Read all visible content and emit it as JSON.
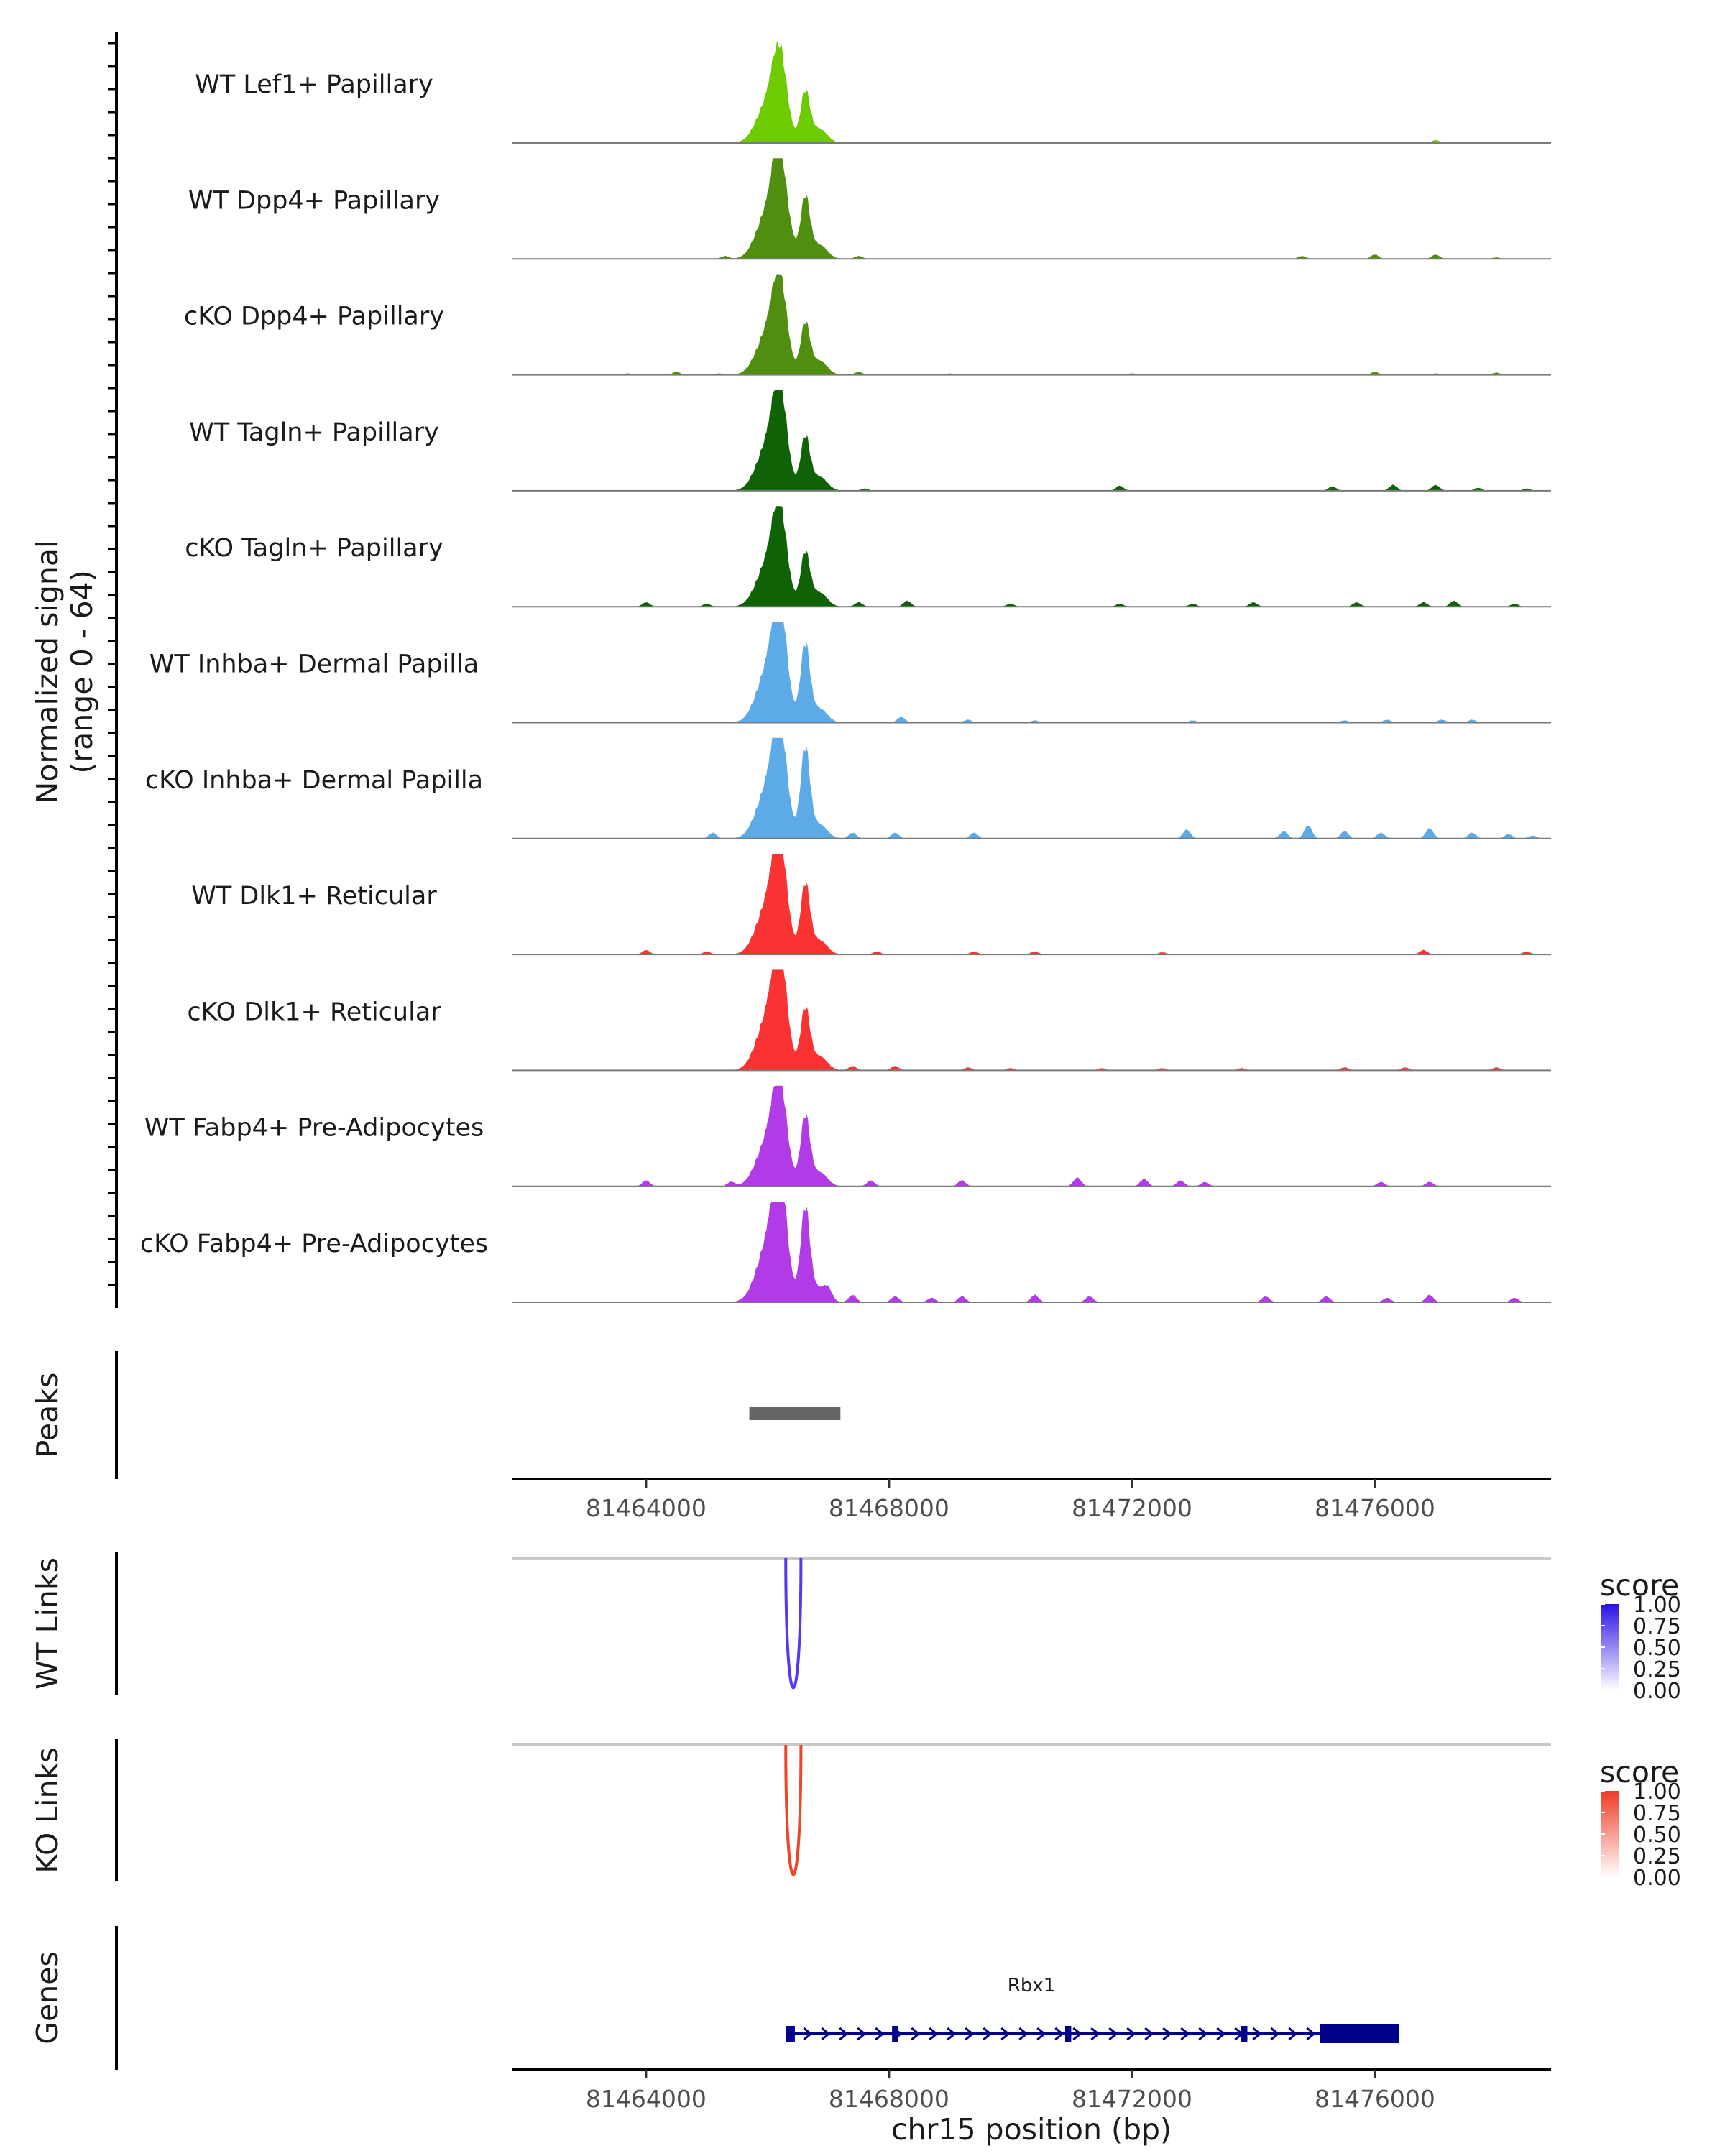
{
  "chart_data": {
    "type": "coverage-track",
    "region": {
      "chrom": "chr15",
      "start": 81461800,
      "end": 81478900
    },
    "ylabel": [
      "Normalized signal",
      "(range 0 - 64)"
    ],
    "ylim": [
      0,
      64
    ],
    "xlabel": "chr15 position (bp)",
    "x_ticks": [
      "81464000",
      "81468000",
      "81472000",
      "81476000"
    ],
    "x_tick_values": [
      81464000,
      81468000,
      81472000,
      81476000
    ],
    "tracks": [
      {
        "label": "WT Lef1+ Papillary",
        "color": "#6ecb00",
        "noise": [
          [
            81469000,
            0.6
          ],
          [
            81477000,
            2.0
          ]
        ],
        "peak_scale": 0.92,
        "mid_scale": 0.62
      },
      {
        "label": "WT Dpp4+ Papillary",
        "color": "#4f8e0e",
        "noise": [
          [
            81465300,
            2.0
          ],
          [
            81466400,
            3.0
          ],
          [
            81467500,
            2.0
          ],
          [
            81474800,
            2.0
          ],
          [
            81476000,
            3.0
          ],
          [
            81477000,
            3.0
          ],
          [
            81478000,
            1.0
          ]
        ],
        "peak_scale": 1.08,
        "mid_scale": 0.75
      },
      {
        "label": "cKO Dpp4+ Papillary",
        "color": "#4f8e0e",
        "noise": [
          [
            81463700,
            1.0
          ],
          [
            81464500,
            2.0
          ],
          [
            81465200,
            1.0
          ],
          [
            81467500,
            2.0
          ],
          [
            81469000,
            1.0
          ],
          [
            81472000,
            1.0
          ],
          [
            81476000,
            2.0
          ],
          [
            81477000,
            1.0
          ],
          [
            81478000,
            1.5
          ]
        ],
        "peak_scale": 0.98,
        "mid_scale": 0.62
      },
      {
        "label": "WT Tagln+ Papillary",
        "color": "#0f6306",
        "noise": [
          [
            81467600,
            1.5
          ],
          [
            81471800,
            3.5
          ],
          [
            81475300,
            3.0
          ],
          [
            81476300,
            4.0
          ],
          [
            81477000,
            4.0
          ],
          [
            81477700,
            2.0
          ],
          [
            81478500,
            1.5
          ]
        ],
        "peak_scale": 1.05,
        "mid_scale": 0.65
      },
      {
        "label": "cKO Tagln+ Papillary",
        "color": "#0f6306",
        "noise": [
          [
            81464000,
            3.0
          ],
          [
            81465000,
            2.0
          ],
          [
            81467500,
            3.0
          ],
          [
            81468300,
            4.0
          ],
          [
            81470000,
            2.0
          ],
          [
            81471800,
            2.0
          ],
          [
            81473000,
            2.0
          ],
          [
            81474000,
            3.0
          ],
          [
            81475700,
            3.0
          ],
          [
            81476800,
            3.0
          ],
          [
            81477300,
            4.0
          ],
          [
            81478300,
            2.0
          ]
        ],
        "peak_scale": 1.0,
        "mid_scale": 0.65
      },
      {
        "label": "WT Inhba+ Dermal Papilla",
        "color": "#5caae6",
        "noise": [
          [
            81468200,
            4.0
          ],
          [
            81469300,
            2.0
          ],
          [
            81470400,
            1.5
          ],
          [
            81473000,
            1.5
          ],
          [
            81475500,
            1.5
          ],
          [
            81476200,
            2.0
          ],
          [
            81477100,
            2.0
          ],
          [
            81477600,
            2.0
          ]
        ],
        "peak_scale": 1.2,
        "mid_scale": 0.95
      },
      {
        "label": "cKO Inhba+ Dermal Papilla",
        "color": "#5caae6",
        "noise": [
          [
            81465100,
            4.0
          ],
          [
            81467400,
            4.0
          ],
          [
            81468100,
            4.0
          ],
          [
            81469400,
            4.0
          ],
          [
            81472900,
            6.0
          ],
          [
            81474500,
            5.0
          ],
          [
            81474900,
            9.0
          ],
          [
            81475500,
            5.0
          ],
          [
            81476100,
            4.0
          ],
          [
            81476900,
            7.0
          ],
          [
            81477600,
            4.0
          ],
          [
            81478200,
            3.0
          ],
          [
            81478600,
            2.0
          ]
        ],
        "peak_scale": 1.15,
        "mid_scale": 1.1
      },
      {
        "label": "WT Dlk1+ Reticular",
        "color": "#fb3232",
        "noise": [
          [
            81464000,
            3.0
          ],
          [
            81465000,
            2.0
          ],
          [
            81467800,
            2.0
          ],
          [
            81469400,
            2.0
          ],
          [
            81470400,
            2.0
          ],
          [
            81472500,
            1.5
          ],
          [
            81476800,
            3.0
          ],
          [
            81478500,
            2.0
          ]
        ],
        "peak_scale": 1.15,
        "mid_scale": 0.85
      },
      {
        "label": "cKO Dlk1+ Reticular",
        "color": "#fb3232",
        "noise": [
          [
            81467400,
            3.0
          ],
          [
            81468100,
            3.0
          ],
          [
            81469300,
            2.0
          ],
          [
            81470000,
            1.5
          ],
          [
            81471500,
            1.5
          ],
          [
            81472500,
            1.5
          ],
          [
            81473800,
            1.5
          ],
          [
            81475500,
            2.0
          ],
          [
            81476500,
            2.0
          ],
          [
            81478000,
            2.0
          ]
        ],
        "peak_scale": 1.2,
        "mid_scale": 0.75
      },
      {
        "label": "WT Fabp4+ Pre-Adipocytes",
        "color": "#b23be8",
        "noise": [
          [
            81464000,
            4.0
          ],
          [
            81465400,
            3.0
          ],
          [
            81467700,
            4.0
          ],
          [
            81469200,
            4.0
          ],
          [
            81471100,
            6.0
          ],
          [
            81472200,
            5.0
          ],
          [
            81472800,
            4.0
          ],
          [
            81473200,
            3.0
          ],
          [
            81476100,
            3.0
          ],
          [
            81476900,
            3.0
          ]
        ],
        "peak_scale": 1.05,
        "mid_scale": 0.85
      },
      {
        "label": "cKO Fabp4+ Pre-Adipocytes",
        "color": "#b23be8",
        "noise": [
          [
            81467000,
            6.0
          ],
          [
            81467400,
            5.0
          ],
          [
            81468100,
            4.0
          ],
          [
            81468700,
            3.0
          ],
          [
            81469200,
            4.0
          ],
          [
            81470400,
            5.0
          ],
          [
            81471300,
            4.0
          ],
          [
            81474200,
            4.0
          ],
          [
            81475200,
            4.0
          ],
          [
            81476200,
            3.0
          ],
          [
            81476900,
            5.0
          ],
          [
            81478300,
            3.0
          ]
        ],
        "peak_scale": 1.3,
        "mid_scale": 1.15
      }
    ],
    "peaks": {
      "label": "Peaks",
      "color": "#666666",
      "regions": [
        [
          81465700,
          81467200
        ]
      ]
    },
    "links": [
      {
        "label": "WT Links",
        "color": "#5638f0",
        "legend_low": "#ffffff",
        "legend_high": "#2b11e6",
        "start": 81466300,
        "end": 81466550,
        "score": 1.0
      },
      {
        "label": "KO Links",
        "color": "#ef4527",
        "legend_low": "#ffffff",
        "legend_high": "#ef3b25",
        "start": 81466300,
        "end": 81466550,
        "score": 1.0
      }
    ],
    "legend": {
      "title": "score",
      "ticks": [
        "1.00",
        "0.75",
        "0.50",
        "0.25",
        "0.00"
      ]
    },
    "genes": {
      "label": "Genes",
      "color": "#00008b",
      "items": [
        {
          "name": "Rbx1",
          "start": 81466300,
          "end": 81476400,
          "exons": [
            [
              81466300,
              81466450
            ],
            [
              81468050,
              81468150
            ],
            [
              81470900,
              81471000
            ],
            [
              81473800,
              81473900
            ],
            [
              81475100,
              81476400
            ]
          ]
        }
      ]
    }
  }
}
